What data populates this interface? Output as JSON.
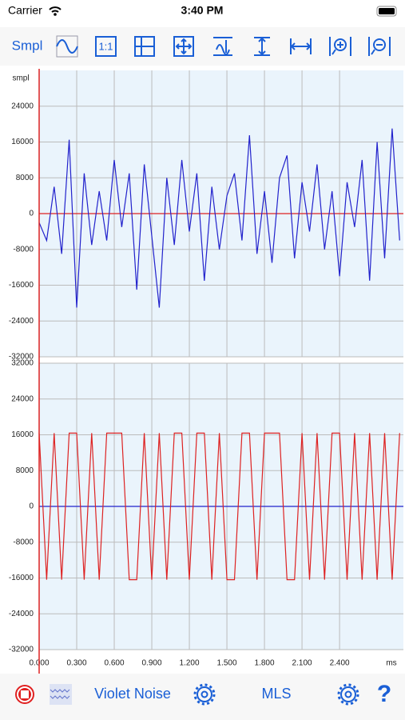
{
  "status_bar": {
    "carrier": "Carrier",
    "time": "3:40 PM"
  },
  "toolbar": {
    "mode": "Smpl",
    "ratio": "1:1"
  },
  "chart_data": [
    {
      "type": "line",
      "y_label": "smpl",
      "color": "#2222cc",
      "zero_line_color": "#dd2222",
      "xlim": [
        0,
        2.91
      ],
      "ylim": [
        -32000,
        32000
      ],
      "yticks": [
        24000,
        16000,
        8000,
        0,
        -8000,
        -16000,
        -24000,
        -32000
      ],
      "x": [
        0,
        0.06,
        0.12,
        0.18,
        0.24,
        0.3,
        0.36,
        0.42,
        0.48,
        0.54,
        0.6,
        0.66,
        0.72,
        0.78,
        0.84,
        0.9,
        0.96,
        1.02,
        1.08,
        1.14,
        1.2,
        1.26,
        1.32,
        1.38,
        1.44,
        1.5,
        1.56,
        1.62,
        1.68,
        1.74,
        1.8,
        1.86,
        1.92,
        1.98,
        2.04,
        2.1,
        2.16,
        2.22,
        2.28,
        2.34,
        2.4,
        2.46,
        2.52,
        2.58,
        2.64,
        2.7,
        2.76,
        2.82,
        2.88
      ],
      "values": [
        -2000,
        -6000,
        6000,
        -9000,
        16500,
        -21000,
        9000,
        -7000,
        5000,
        -6000,
        12000,
        -3000,
        9000,
        -17000,
        11000,
        -5000,
        -21000,
        8000,
        -7000,
        12000,
        -4000,
        9000,
        -15000,
        6000,
        -8000,
        4000,
        9000,
        -6000,
        17500,
        -9000,
        5000,
        -11000,
        8000,
        13000,
        -10000,
        7000,
        -4000,
        11000,
        -8000,
        5000,
        -14000,
        7000,
        -3000,
        12000,
        -15000,
        16000,
        -10000,
        19000,
        -6000
      ],
      "grid": true
    },
    {
      "type": "line",
      "x_label": "ms",
      "color": "#dd2222",
      "zero_line_color": "#2222cc",
      "xlim": [
        0,
        2.91
      ],
      "ylim": [
        -32000,
        32000
      ],
      "yticks": [
        32000,
        24000,
        16000,
        8000,
        0,
        -8000,
        -16000,
        -24000,
        -32000
      ],
      "xticks": [
        {
          "value": 0,
          "label": "0.000"
        },
        {
          "value": 0.3,
          "label": "0.300"
        },
        {
          "value": 0.6,
          "label": "0.600"
        },
        {
          "value": 0.9,
          "label": "0.900"
        },
        {
          "value": 1.2,
          "label": "1.200"
        },
        {
          "value": 1.5,
          "label": "1.500"
        },
        {
          "value": 1.8,
          "label": "1.800"
        },
        {
          "value": 2.1,
          "label": "2.100"
        },
        {
          "value": 2.4,
          "label": "2.400"
        }
      ],
      "x": [
        0,
        0.06,
        0.12,
        0.18,
        0.24,
        0.3,
        0.36,
        0.42,
        0.48,
        0.54,
        0.6,
        0.66,
        0.72,
        0.78,
        0.84,
        0.9,
        0.96,
        1.02,
        1.08,
        1.14,
        1.2,
        1.26,
        1.32,
        1.38,
        1.44,
        1.5,
        1.56,
        1.62,
        1.68,
        1.74,
        1.8,
        1.86,
        1.92,
        1.98,
        2.04,
        2.1,
        2.16,
        2.22,
        2.28,
        2.34,
        2.4,
        2.46,
        2.52,
        2.58,
        2.64,
        2.7,
        2.76,
        2.82,
        2.88
      ],
      "values": [
        16384,
        -16384,
        16384,
        -16384,
        16384,
        16384,
        -16384,
        16384,
        -16384,
        16384,
        16384,
        16384,
        -16384,
        -16384,
        16384,
        -16384,
        16384,
        -16384,
        16384,
        16384,
        -16384,
        16384,
        16384,
        -16384,
        16384,
        -16384,
        -16384,
        16384,
        16384,
        -16384,
        16384,
        16384,
        16384,
        -16384,
        -16384,
        16384,
        -16384,
        16384,
        -16384,
        16384,
        16384,
        -16384,
        16384,
        -16384,
        16384,
        -16384,
        16384,
        -16384,
        16384
      ],
      "grid": true
    }
  ],
  "bottom_bar": {
    "generator_left": "Violet Noise",
    "generator_right": "MLS",
    "help": "?"
  }
}
